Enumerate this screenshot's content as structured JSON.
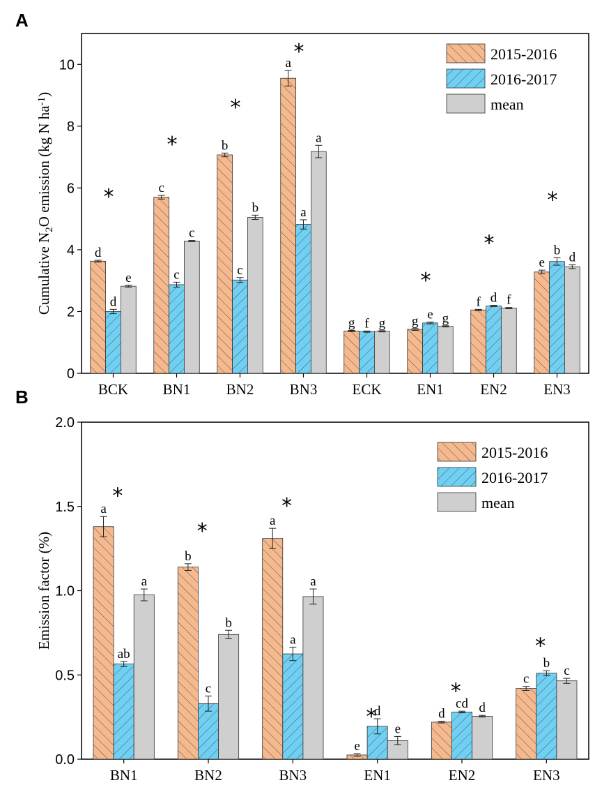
{
  "colors": {
    "s2015": "#f6b98d",
    "s2016": "#6fd0f4",
    "mean": "#cfcfcf",
    "hatch": "#555555"
  },
  "chart_data": [
    {
      "panel": "A",
      "type": "bar",
      "ylabel": "Cumulative N",
      "ylabel_sub": "2",
      "ylabel_rest": "O emission (kg N ha",
      "ylabel_sup": "-1",
      "ylabel_end": ")",
      "ylim": [
        0,
        11
      ],
      "yticks": [
        "0",
        "2",
        "4",
        "6",
        "8",
        "10"
      ],
      "ytick_values": [
        0,
        2,
        4,
        6,
        8,
        10
      ],
      "categories": [
        "BCK",
        "BN1",
        "BN2",
        "BN3",
        "ECK",
        "EN1",
        "EN2",
        "EN3"
      ],
      "legend": [
        "2015-2016",
        "2016-2017",
        "mean"
      ],
      "series": [
        {
          "name": "2015-2016",
          "values": [
            3.63,
            5.7,
            7.07,
            9.55,
            1.37,
            1.42,
            2.05,
            3.28
          ],
          "errors": [
            0.03,
            0.06,
            0.06,
            0.25,
            0.02,
            0.03,
            0.02,
            0.06
          ],
          "letters": [
            "d",
            "c",
            "b",
            "a",
            "g",
            "g",
            "f",
            "e"
          ]
        },
        {
          "name": "2016-2017",
          "values": [
            2.0,
            2.87,
            3.02,
            4.82,
            1.35,
            1.63,
            2.18,
            3.62
          ],
          "errors": [
            0.07,
            0.08,
            0.08,
            0.15,
            0.02,
            0.03,
            0.02,
            0.12
          ],
          "letters": [
            "d",
            "c",
            "c",
            "a",
            "f",
            "e",
            "d",
            "b"
          ]
        },
        {
          "name": "mean",
          "values": [
            2.82,
            4.28,
            5.05,
            7.18,
            1.36,
            1.52,
            2.11,
            3.45
          ],
          "errors": [
            0.03,
            0.02,
            0.07,
            0.2,
            0.02,
            0.02,
            0.02,
            0.06
          ],
          "letters": [
            "e",
            "c",
            "b",
            "a",
            "g",
            "g",
            "f",
            "d"
          ]
        }
      ],
      "stars": [
        "*",
        "*",
        "*",
        "*",
        "",
        "*",
        "*",
        "*"
      ],
      "star_values": [
        5.8,
        7.5,
        8.7,
        10.5,
        null,
        3.1,
        4.3,
        5.7
      ]
    },
    {
      "panel": "B",
      "type": "bar",
      "ylabel": "Emission factor (%)",
      "ylim": [
        0,
        2.0
      ],
      "yticks": [
        "0.0",
        "0.5",
        "1.0",
        "1.5",
        "2.0"
      ],
      "ytick_values": [
        0,
        0.5,
        1.0,
        1.5,
        2.0
      ],
      "categories": [
        "BN1",
        "BN2",
        "BN3",
        "EN1",
        "EN2",
        "EN3"
      ],
      "legend": [
        "2015-2016",
        "2016-2017",
        "mean"
      ],
      "series": [
        {
          "name": "2015-2016",
          "values": [
            1.38,
            1.14,
            1.31,
            0.025,
            0.22,
            0.42
          ],
          "errors": [
            0.06,
            0.02,
            0.06,
            0.008,
            0.005,
            0.012
          ],
          "letters": [
            "a",
            "b",
            "a",
            "e",
            "d",
            "c"
          ]
        },
        {
          "name": "2016-2017",
          "values": [
            0.565,
            0.33,
            0.625,
            0.195,
            0.28,
            0.51
          ],
          "errors": [
            0.015,
            0.045,
            0.04,
            0.045,
            0.005,
            0.015
          ],
          "letters": [
            "ab",
            "c",
            "a",
            "d",
            "cd",
            "b"
          ]
        },
        {
          "name": "mean",
          "values": [
            0.975,
            0.74,
            0.965,
            0.11,
            0.255,
            0.465
          ],
          "errors": [
            0.035,
            0.025,
            0.045,
            0.025,
            0.005,
            0.015
          ],
          "letters": [
            "a",
            "b",
            "a",
            "e",
            "d",
            "c"
          ]
        }
      ],
      "stars": [
        "*",
        "*",
        "*",
        "*",
        "*",
        "*"
      ],
      "star_values": [
        1.58,
        1.37,
        1.52,
        0.27,
        0.42,
        0.69
      ]
    }
  ]
}
